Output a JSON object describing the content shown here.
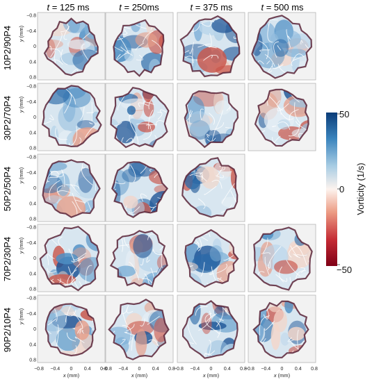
{
  "chart_data": {
    "type": "heatmap",
    "columns": [
      {
        "label_var": "t",
        "label_rest": " = 125 ms"
      },
      {
        "label_var": "t",
        "label_rest": " = 250ms"
      },
      {
        "label_var": "t",
        "label_rest": " = 375 ms"
      },
      {
        "label_var": "t",
        "label_rest": " = 500 ms"
      }
    ],
    "rows": [
      "10P2/90P4",
      "30P2/70P4",
      "50P2/50P4",
      "70P2/30P4",
      "90P2/10P4"
    ],
    "panels_present": [
      [
        true,
        true,
        true,
        true
      ],
      [
        true,
        true,
        true,
        true
      ],
      [
        true,
        true,
        true,
        false
      ],
      [
        true,
        true,
        true,
        true
      ],
      [
        true,
        true,
        true,
        true
      ]
    ],
    "xlabel": "x (mm)",
    "xlabel_var": "x",
    "xlabel_unit": " (mm)",
    "ylabel_var": "y",
    "ylabel_unit": " (mm)",
    "xlim": [
      -0.8,
      0.8
    ],
    "ylim": [
      0.8,
      -0.8
    ],
    "y_axis_inverted": true,
    "xticks": [
      "−0.8",
      "−0.4",
      "0",
      "0.4",
      "0.8"
    ],
    "yticks": [
      "−0.8",
      "−0.4",
      "0",
      "0.4",
      "0.8"
    ],
    "colorbar": {
      "label": "Vorticity (1/s)",
      "min": -50,
      "max": 50,
      "ticks": [
        "50",
        "0",
        "−50"
      ],
      "colors": [
        "#7f0016",
        "#c42b34",
        "#ec9b83",
        "#fdf3ee",
        "#a9cde4",
        "#3a84bd",
        "#0b3c78"
      ]
    }
  }
}
